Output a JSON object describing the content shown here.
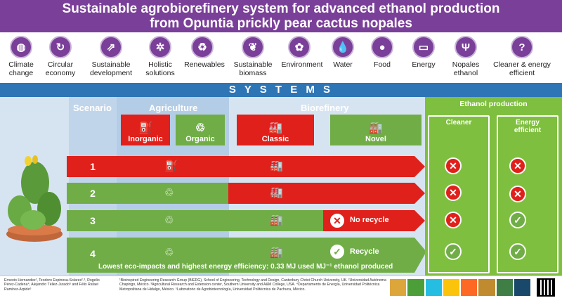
{
  "header": {
    "line1": "Sustainable agrobiorefinery system for advanced ethanol production",
    "line2": "from Opuntia prickly pear cactus nopales"
  },
  "icons": [
    {
      "label1": "Climate",
      "label2": "change",
      "icon": "globe-icon"
    },
    {
      "label1": "Circular",
      "label2": "economy",
      "icon": "recycle-icon"
    },
    {
      "label1": "Sustainable",
      "label2": "development",
      "icon": "growth-icon"
    },
    {
      "label1": "Holistic",
      "label2": "solutions",
      "icon": "network-icon"
    },
    {
      "label1": "Renewables",
      "label2": "",
      "icon": "renewable-icon"
    },
    {
      "label1": "Sustainable",
      "label2": "biomass",
      "icon": "leaf-icon"
    },
    {
      "label1": "Environment",
      "label2": "",
      "icon": "plant-hand-icon"
    },
    {
      "label1": "Water",
      "label2": "",
      "icon": "water-drop-icon"
    },
    {
      "label1": "Food",
      "label2": "",
      "icon": "apple-icon"
    },
    {
      "label1": "Energy",
      "label2": "",
      "icon": "battery-icon"
    },
    {
      "label1": "Nopales",
      "label2": "ethanol",
      "icon": "cactus-icon"
    },
    {
      "label1": "Cleaner & energy",
      "label2": "efficient",
      "icon": "question-icon"
    }
  ],
  "systems_title": "S Y S T E M S",
  "columns": {
    "scenario": "Scenario",
    "agriculture": "Agriculture",
    "biorefinery": "Biorefinery",
    "ethanol_production": "Ethanol production",
    "cleaner": "Cleaner",
    "energy_efficient_1": "Energy",
    "energy_efficient_2": "efficient"
  },
  "legend": {
    "inorganic": "Inorganic",
    "organic": "Organic",
    "classic": "Classic",
    "novel": "Novel"
  },
  "scenarios": [
    {
      "num": "1",
      "note": "",
      "cleaner": "x",
      "efficient": "x"
    },
    {
      "num": "2",
      "note": "",
      "cleaner": "x",
      "efficient": "x"
    },
    {
      "num": "3",
      "note": "No recycle",
      "cleaner": "x",
      "efficient": "check"
    },
    {
      "num": "4",
      "note": "Recycle",
      "cleaner": "check",
      "efficient": "check"
    }
  ],
  "bottom_line": "Lowest eco-impacts and highest energy efficiency: 0.33 MJ used MJ⁻¹ ethanol produced",
  "footer": {
    "authors": "Ernesto Hernandez¹, Teodoro Espinosa-Solares²˒³, Rogelio Pérez-Cadena⁴, Alejandro Téllez-Jurado⁵ and Félix Rafael Ramírez-Arpide⁶",
    "affiliations": "¹Bioinspired Engineering Research Group (BIERG), School of Engineering, Technology and Design, Canterbury Christ Church University, UK. ²Universidad Autónoma Chapingo, México. ³Agricultural Research and Extension center, Southern University and A&M College, USA. ⁴Departamento de Energía, Universidad Politécnica Metropolitana de Hidalgo, México. ⁵Laboratorio de Agrobiotecnología, Universidad Politécnica de Pachuca, México.",
    "sdg_colors": [
      "#dda63a",
      "#4c9f38",
      "#26bde2",
      "#fcc30b",
      "#fd6925",
      "#bf8b2e",
      "#3f7e44",
      "#19486a"
    ]
  },
  "colors": {
    "purple": "#7a3f98",
    "red": "#e0201b",
    "green": "#70ad47",
    "blue": "#2e75b6"
  }
}
